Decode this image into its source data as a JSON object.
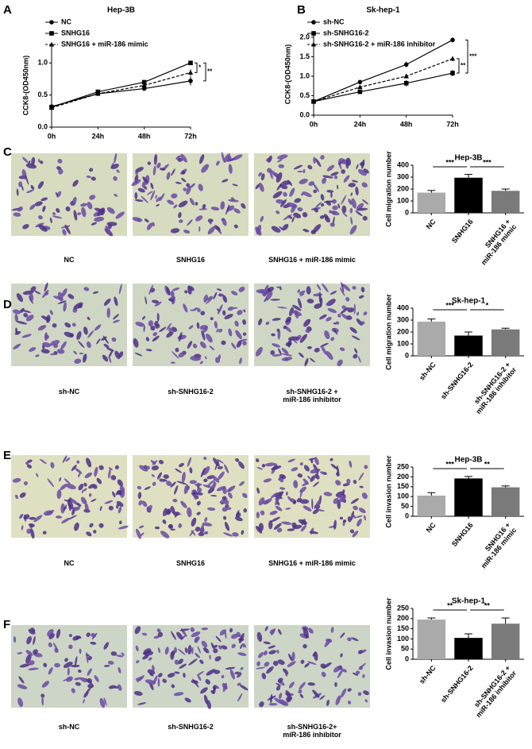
{
  "chart_data": [
    {
      "panel": "A",
      "type": "line",
      "title": "Hep-3B",
      "ylabel": "CCK8-(OD450nm)",
      "categories": [
        "0h",
        "24h",
        "48h",
        "72h"
      ],
      "series": [
        {
          "name": "NC",
          "color": "#000000",
          "marker": "circle",
          "dash": false,
          "values": [
            0.32,
            0.52,
            0.6,
            0.72
          ],
          "errors": [
            0.02,
            0.02,
            0.03,
            0.07
          ]
        },
        {
          "name": "SNHG16",
          "color": "#000000",
          "marker": "square",
          "dash": false,
          "values": [
            0.31,
            0.55,
            0.7,
            1.0
          ],
          "errors": [
            0.02,
            0.02,
            0.03,
            0.03
          ]
        },
        {
          "name": "SNHG16 + miR-186 mimic",
          "color": "#000000",
          "marker": "triangle",
          "dash": true,
          "values": [
            0.3,
            0.52,
            0.65,
            0.85
          ],
          "errors": [
            0.02,
            0.02,
            0.03,
            0.05
          ]
        }
      ],
      "ylim": [
        0,
        1.3
      ],
      "yticks": [
        {
          "value": 0,
          "label": "0.0"
        },
        {
          "value": 0.5,
          "label": "0.5"
        },
        {
          "value": 1,
          "label": "1.0"
        }
      ],
      "annotations": [
        "*",
        "**"
      ]
    },
    {
      "panel": "B",
      "type": "line",
      "title": "Sk-hep-1",
      "ylabel": "CCK8-(OD450nm)",
      "categories": [
        "0h",
        "24h",
        "48h",
        "72h"
      ],
      "series": [
        {
          "name": "sh-NC",
          "color": "#000000",
          "marker": "circle",
          "dash": false,
          "values": [
            0.35,
            0.85,
            1.3,
            1.93
          ],
          "errors": [
            0.02,
            0.04,
            0.07,
            0.06
          ]
        },
        {
          "name": "sh-SNHG16-2",
          "color": "#000000",
          "marker": "square",
          "dash": false,
          "values": [
            0.35,
            0.6,
            0.82,
            1.08
          ],
          "errors": [
            0.02,
            0.04,
            0.08,
            0.08
          ]
        },
        {
          "name": "sh-SNHG16-2 + miR-186 inhibitor",
          "color": "#000000",
          "marker": "triangle",
          "dash": true,
          "values": [
            0.35,
            0.72,
            1.0,
            1.45
          ],
          "errors": [
            0.02,
            0.04,
            0.06,
            0.06
          ]
        }
      ],
      "ylim": [
        0,
        2.1
      ],
      "yticks": [
        {
          "value": 0,
          "label": "0.0"
        },
        {
          "value": 0.5,
          "label": "0.5"
        },
        {
          "value": 1,
          "label": "1.0"
        },
        {
          "value": 1.5,
          "label": "1.5"
        },
        {
          "value": 2,
          "label": "2.0"
        }
      ],
      "annotations": [
        "**",
        "***"
      ]
    },
    {
      "panel": "C",
      "type": "bar",
      "title": "Hep-3B",
      "ylabel": "Cell migration number",
      "categories": [
        "NC",
        "SNHG16",
        "SNHG16 +\nmiR-186 mimic"
      ],
      "colors": [
        "#aaaaaa",
        "#000000",
        "#7a7a7a"
      ],
      "values": [
        170,
        295,
        185
      ],
      "errors": [
        18,
        28,
        15
      ],
      "ylim": [
        0,
        400
      ],
      "yticks": [
        0,
        100,
        200,
        300,
        400
      ],
      "annotations": [
        "***",
        "***"
      ]
    },
    {
      "panel": "D",
      "type": "bar",
      "title": "Sk-hep-1",
      "ylabel": "Cell migration number",
      "categories": [
        "sh-NC",
        "sh-SNHG16-2",
        "sh-SNHG16-2 +\nmiR-186 inhibitor"
      ],
      "colors": [
        "#aaaaaa",
        "#000000",
        "#7a7a7a"
      ],
      "values": [
        287,
        170,
        222
      ],
      "errors": [
        22,
        30,
        10
      ],
      "ylim": [
        0,
        400
      ],
      "yticks": [
        0,
        100,
        200,
        300,
        400
      ],
      "annotations": [
        "***",
        "*"
      ]
    },
    {
      "panel": "E",
      "type": "bar",
      "title": "Hep-3B",
      "ylabel": "Cell invasion number",
      "categories": [
        "NC",
        "SNHG16",
        "SNHG16 +\nmiR-186 mimic"
      ],
      "colors": [
        "#aaaaaa",
        "#000000",
        "#7a7a7a"
      ],
      "values": [
        105,
        192,
        147
      ],
      "errors": [
        15,
        10,
        7
      ],
      "ylim": [
        0,
        250
      ],
      "yticks": [
        0,
        50,
        100,
        150,
        200,
        250
      ],
      "annotations": [
        "***",
        "**"
      ]
    },
    {
      "panel": "F",
      "type": "bar",
      "title": "Sk-hep-1",
      "ylabel": "Cell invasion number",
      "categories": [
        "sh-NC",
        "sh-SNHG16-2",
        "sh-SNHG16-2 +\nmiR-186 inhibitor"
      ],
      "colors": [
        "#aaaaaa",
        "#000000",
        "#7a7a7a"
      ],
      "values": [
        195,
        105,
        175
      ],
      "errors": [
        8,
        20,
        28
      ],
      "ylim": [
        0,
        250
      ],
      "yticks": [
        0,
        50,
        100,
        150,
        200,
        250
      ],
      "annotations": [
        "**",
        "**"
      ]
    }
  ],
  "micrographs": [
    {
      "captions": [
        "NC",
        "SNHG16",
        "SNHG16 + miR-186 mimic"
      ]
    },
    {
      "captions": [
        "sh-NC",
        "sh-SNHG16-2",
        "sh-SNHG16-2 +\nmiR-186 inhibitor"
      ]
    },
    {
      "captions": [
        "NC",
        "SNHG16",
        "SNHG16 + miR-186 mimic"
      ]
    },
    {
      "captions": [
        "sh-NC",
        "sh-SNHG16-2",
        "sh-SNHG16-2+\nmiR-186 inhibitor"
      ]
    }
  ]
}
